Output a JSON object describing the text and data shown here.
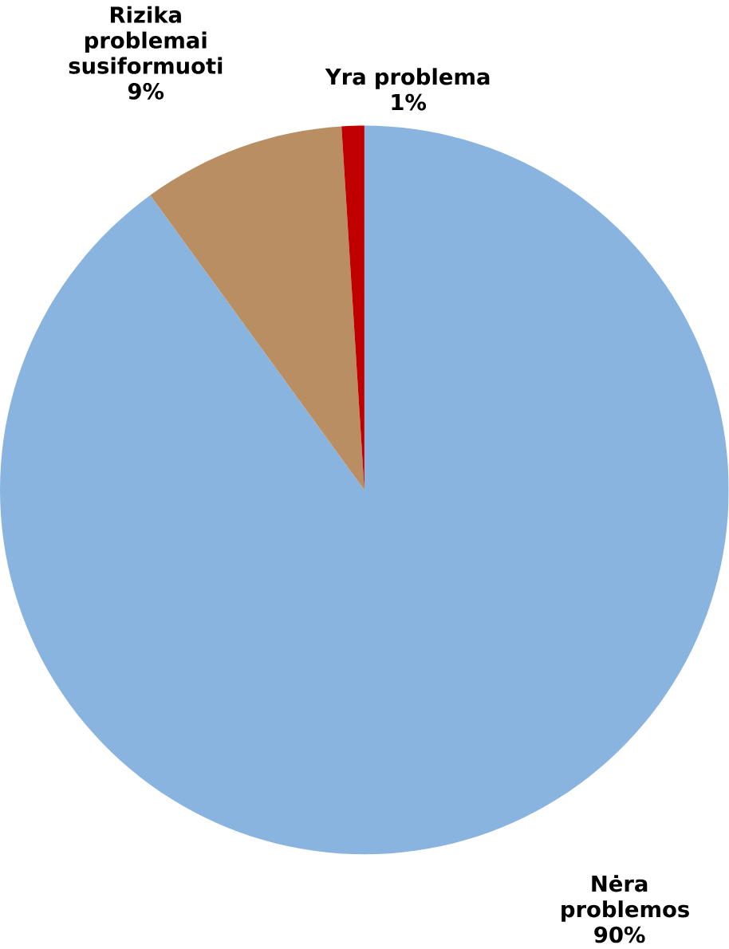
{
  "chart_data": {
    "type": "pie",
    "categories": [
      "Nėra problemos",
      "Rizika problemai susiformuoti",
      "Yra problema"
    ],
    "values": [
      90,
      9,
      1
    ],
    "value_labels": [
      "90%",
      "9%",
      "1%"
    ],
    "colors": [
      "#8ab4e0",
      "#b88e62",
      "#c00000"
    ]
  }
}
